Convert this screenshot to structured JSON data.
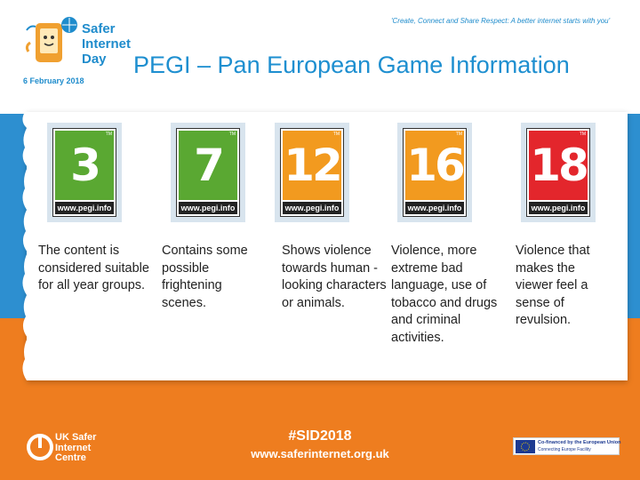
{
  "header": {
    "logo_lines": [
      "Safer",
      "Internet",
      "Day"
    ],
    "date": "6 February 2018",
    "tagline": "'Create, Connect and Share Respect: A better internet starts with you'"
  },
  "title": "PEGI – Pan European Game Information",
  "ratings": [
    {
      "number": "3",
      "site": "www.pegi.info",
      "tm": "TM",
      "color": "#5aa832",
      "description": "The content is considered suitable for all year groups."
    },
    {
      "number": "7",
      "site": "www.pegi.info",
      "tm": "TM",
      "color": "#5aa832",
      "description": "Contains some possible frightening scenes."
    },
    {
      "number": "12",
      "site": "www.pegi.info",
      "tm": "TM",
      "color": "#f29a1f",
      "description": "Shows violence towards human -looking characters or animals."
    },
    {
      "number": "16",
      "site": "www.pegi.info",
      "tm": "TM",
      "color": "#f29a1f",
      "description": "Violence, more extreme bad language, use of tobacco and drugs and criminal activities."
    },
    {
      "number": "18",
      "site": "www.pegi.info",
      "tm": "TM",
      "color": "#e3262c",
      "description": "Violence that makes the viewer feel a sense of revulsion."
    }
  ],
  "footer": {
    "uk_logo_lines": [
      "UK Safer",
      "Internet",
      "Centre"
    ],
    "hashtag": "#SID2018",
    "url": "www.saferinternet.org.uk",
    "eu_line1": "Co-financed by the European Union",
    "eu_line2": "Connecting Europe Facility"
  },
  "colors": {
    "blue_band": "#2d8fd0",
    "orange_band": "#ee7d1f",
    "title_blue": "#1e8fd0"
  }
}
